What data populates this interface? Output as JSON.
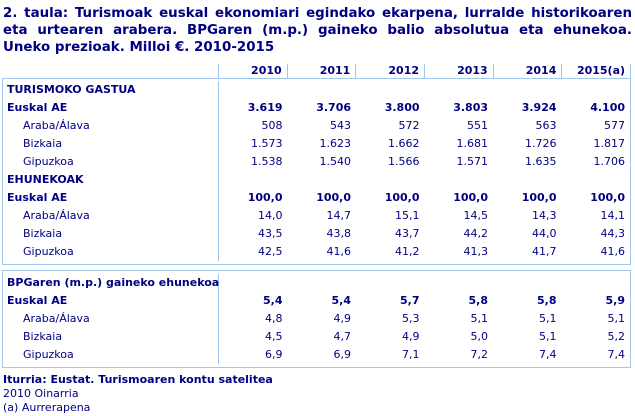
{
  "colors": {
    "text": "#000080",
    "border": "#A0C8EC",
    "background": "#FFFFFF"
  },
  "chart_data": {
    "type": "table",
    "title": "2. taula: Turismoak euskal ekonomiari egindako ekarpena, lurralde historikoaren eta urtearen arabera. BPGaren (m.p.) gaineko balio absolutua eta ehunekoa. Uneko prezioak. Milloi €. 2010-2015",
    "columns": [
      "2010",
      "2011",
      "2012",
      "2013",
      "2014",
      "2015(a)"
    ],
    "sections": [
      {
        "header": "TURISMOKO GASTUA",
        "rows": [
          {
            "label": "Euskal AE",
            "bold": true,
            "indent": false,
            "values": [
              "3.619",
              "3.706",
              "3.800",
              "3.803",
              "3.924",
              "4.100"
            ]
          },
          {
            "label": "Araba/Álava",
            "bold": false,
            "indent": true,
            "values": [
              "508",
              "543",
              "572",
              "551",
              "563",
              "577"
            ]
          },
          {
            "label": "Bizkaia",
            "bold": false,
            "indent": true,
            "values": [
              "1.573",
              "1.623",
              "1.662",
              "1.681",
              "1.726",
              "1.817"
            ]
          },
          {
            "label": "Gipuzkoa",
            "bold": false,
            "indent": true,
            "values": [
              "1.538",
              "1.540",
              "1.566",
              "1.571",
              "1.635",
              "1.706"
            ]
          }
        ]
      },
      {
        "header": "EHUNEKOAK",
        "rows": [
          {
            "label": "Euskal AE",
            "bold": true,
            "indent": false,
            "values": [
              "100,0",
              "100,0",
              "100,0",
              "100,0",
              "100,0",
              "100,0"
            ]
          },
          {
            "label": "Araba/Álava",
            "bold": false,
            "indent": true,
            "values": [
              "14,0",
              "14,7",
              "15,1",
              "14,5",
              "14,3",
              "14,1"
            ]
          },
          {
            "label": "Bizkaia",
            "bold": false,
            "indent": true,
            "values": [
              "43,5",
              "43,8",
              "43,7",
              "44,2",
              "44,0",
              "44,3"
            ]
          },
          {
            "label": "Gipuzkoa",
            "bold": false,
            "indent": true,
            "values": [
              "42,5",
              "41,6",
              "41,2",
              "41,3",
              "41,7",
              "41,6"
            ]
          }
        ]
      },
      {
        "header": "BPGaren (m.p.) gaineko ehunekoa",
        "rows": [
          {
            "label": "Euskal AE",
            "bold": true,
            "indent": false,
            "values": [
              "5,4",
              "5,4",
              "5,7",
              "5,8",
              "5,8",
              "5,9"
            ]
          },
          {
            "label": "Araba/Álava",
            "bold": false,
            "indent": true,
            "values": [
              "4,8",
              "4,9",
              "5,3",
              "5,1",
              "5,1",
              "5,1"
            ]
          },
          {
            "label": "Bizkaia",
            "bold": false,
            "indent": true,
            "values": [
              "4,5",
              "4,7",
              "4,9",
              "5,0",
              "5,1",
              "5,2"
            ]
          },
          {
            "label": "Gipuzkoa",
            "bold": false,
            "indent": true,
            "values": [
              "6,9",
              "6,9",
              "7,1",
              "7,2",
              "7,4",
              "7,4"
            ]
          }
        ]
      }
    ],
    "footnotes": {
      "source": "Iturria: Eustat. Turismoaren kontu satelitea",
      "base": "2010 Oinarria",
      "advance": "(a) Aurrerapena"
    }
  }
}
